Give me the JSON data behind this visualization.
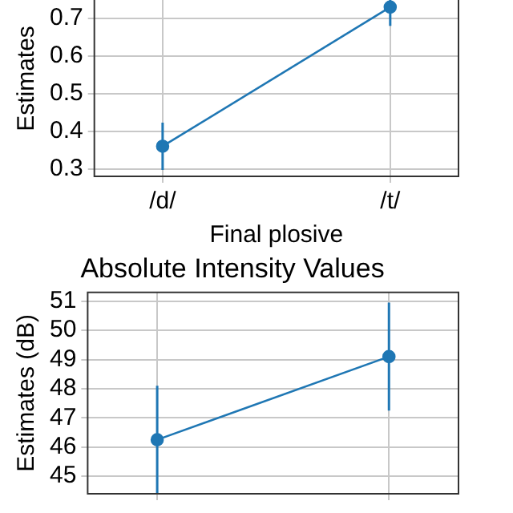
{
  "chart_data": [
    {
      "type": "line",
      "xlabel": "Final plosive",
      "ylabel": "Estimates",
      "categories": [
        "/d/",
        "/t/"
      ],
      "series": [
        {
          "color": "#1f77b4",
          "values": [
            0.36,
            0.73
          ],
          "errors": [
            0.063,
            0.05
          ]
        }
      ],
      "ylim": [
        0.28,
        0.8
      ],
      "yticks": [
        0.3,
        0.4,
        0.5,
        0.6,
        0.7
      ],
      "grid": true,
      "marker": "circle"
    },
    {
      "type": "line",
      "title": "Absolute Intensity Values",
      "ylabel": "Estimates (dB)",
      "categories": [
        null,
        null
      ],
      "series": [
        {
          "color": "#1f77b4",
          "values": [
            46.25,
            49.1
          ],
          "errors": [
            1.85,
            1.85
          ]
        }
      ],
      "ylim": [
        44.4,
        51.3
      ],
      "yticks": [
        45,
        46,
        47,
        48,
        49,
        50,
        51
      ],
      "grid": true,
      "marker": "circle",
      "tick_labels": "y"
    }
  ]
}
